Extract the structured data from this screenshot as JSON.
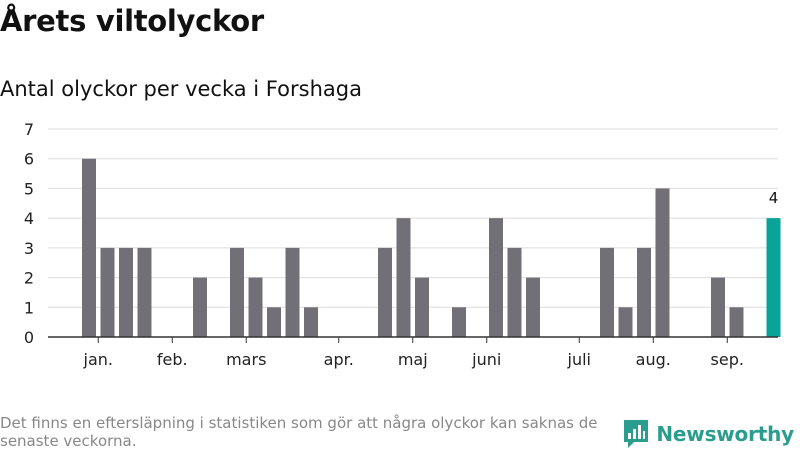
{
  "header": {
    "title": "Årets viltolyckor",
    "subtitle": "Antal olyckor per vecka i Forshaga"
  },
  "footer": {
    "note": "Det finns en eftersläpning i statistiken som gör att några olyckor kan saknas de senaste veckorna.",
    "brand_name": "Newsworthy",
    "brand_icon": "newsworthy-logo-icon"
  },
  "colors": {
    "bar": "#727076",
    "highlight": "#0aa39a",
    "grid": "#dddddd",
    "axis": "#333333",
    "brand": "#2a9d8f"
  },
  "chart_data": {
    "type": "bar",
    "title": "",
    "xlabel": "",
    "ylabel": "",
    "ylim": [
      0,
      7
    ],
    "yticks": [
      0,
      1,
      2,
      3,
      4,
      5,
      6,
      7
    ],
    "grid": true,
    "x": [
      1,
      2,
      3,
      4,
      5,
      6,
      7,
      8,
      9,
      10,
      11,
      12,
      13,
      14,
      15,
      16,
      17,
      18,
      19,
      20,
      21,
      22,
      23,
      24,
      25,
      26,
      27,
      28,
      29,
      30,
      31,
      32,
      33,
      34,
      35,
      36,
      37,
      38
    ],
    "values": [
      6,
      3,
      3,
      3,
      0,
      0,
      2,
      0,
      3,
      2,
      1,
      3,
      1,
      0,
      0,
      0,
      3,
      4,
      2,
      0,
      1,
      0,
      4,
      3,
      2,
      0,
      0,
      0,
      3,
      1,
      3,
      5,
      0,
      0,
      2,
      1,
      0,
      4
    ],
    "highlight_index": 37,
    "highlight_label": "4",
    "month_labels": [
      {
        "label": "jan.",
        "x": 1.5
      },
      {
        "label": "feb.",
        "x": 5.5
      },
      {
        "label": "mars",
        "x": 9.5
      },
      {
        "label": "apr.",
        "x": 14.5
      },
      {
        "label": "maj",
        "x": 18.5
      },
      {
        "label": "juni",
        "x": 22.5
      },
      {
        "label": "juli",
        "x": 27.5
      },
      {
        "label": "aug.",
        "x": 31.5
      },
      {
        "label": "sep.",
        "x": 35.5
      }
    ]
  }
}
